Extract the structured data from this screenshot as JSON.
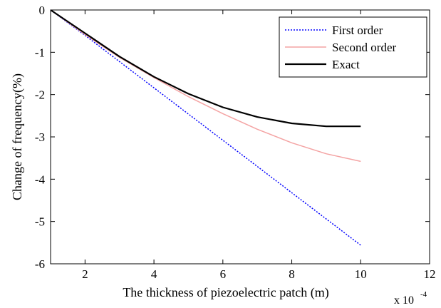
{
  "chart_data": {
    "type": "line",
    "xlabel": "The thickness of piezoelectric patch (m)",
    "ylabel": "Change of frequency(%)",
    "x_multiplier": {
      "base": "x 10",
      "exponent": "-4"
    },
    "xlim": [
      1,
      12
    ],
    "ylim": [
      -6,
      0
    ],
    "xticks": [
      2,
      4,
      6,
      8,
      10,
      12
    ],
    "yticks": [
      0,
      -1,
      -2,
      -3,
      -4,
      -5,
      -6
    ],
    "grid": false,
    "legend_position": "top-right",
    "series": [
      {
        "name": "First order",
        "color": "#0000ff",
        "style": "dotted",
        "x": [
          1,
          2,
          3,
          4,
          5,
          6,
          7,
          8,
          9,
          10
        ],
        "y": [
          0,
          -0.6,
          -1.22,
          -1.84,
          -2.46,
          -3.08,
          -3.7,
          -4.32,
          -4.94,
          -5.56
        ]
      },
      {
        "name": "Second order",
        "color": "#f4a3a3",
        "style": "solid",
        "x": [
          1,
          2,
          3,
          4,
          5,
          6,
          7,
          8,
          9,
          10
        ],
        "y": [
          0,
          -0.58,
          -1.12,
          -1.6,
          -2.05,
          -2.45,
          -2.82,
          -3.14,
          -3.4,
          -3.58
        ]
      },
      {
        "name": "Exact",
        "color": "#000000",
        "style": "solid",
        "x": [
          1,
          2,
          3,
          4,
          5,
          6,
          7,
          8,
          9,
          10
        ],
        "y": [
          0,
          -0.55,
          -1.1,
          -1.58,
          -1.98,
          -2.3,
          -2.53,
          -2.68,
          -2.75,
          -2.75
        ]
      }
    ]
  }
}
